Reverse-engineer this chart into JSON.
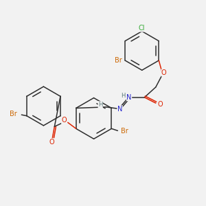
{
  "background_color": "#f2f2f2",
  "bond_color": "#2d2d2d",
  "atom_colors": {
    "Br": "#cc6600",
    "Cl": "#33aa33",
    "O": "#dd2200",
    "N": "#2222cc",
    "H": "#557777",
    "C": "#2d2d2d"
  },
  "font_size": 7.0,
  "lw": 1.1,
  "fig_width": 3.0,
  "fig_height": 3.0,
  "dpi": 100
}
